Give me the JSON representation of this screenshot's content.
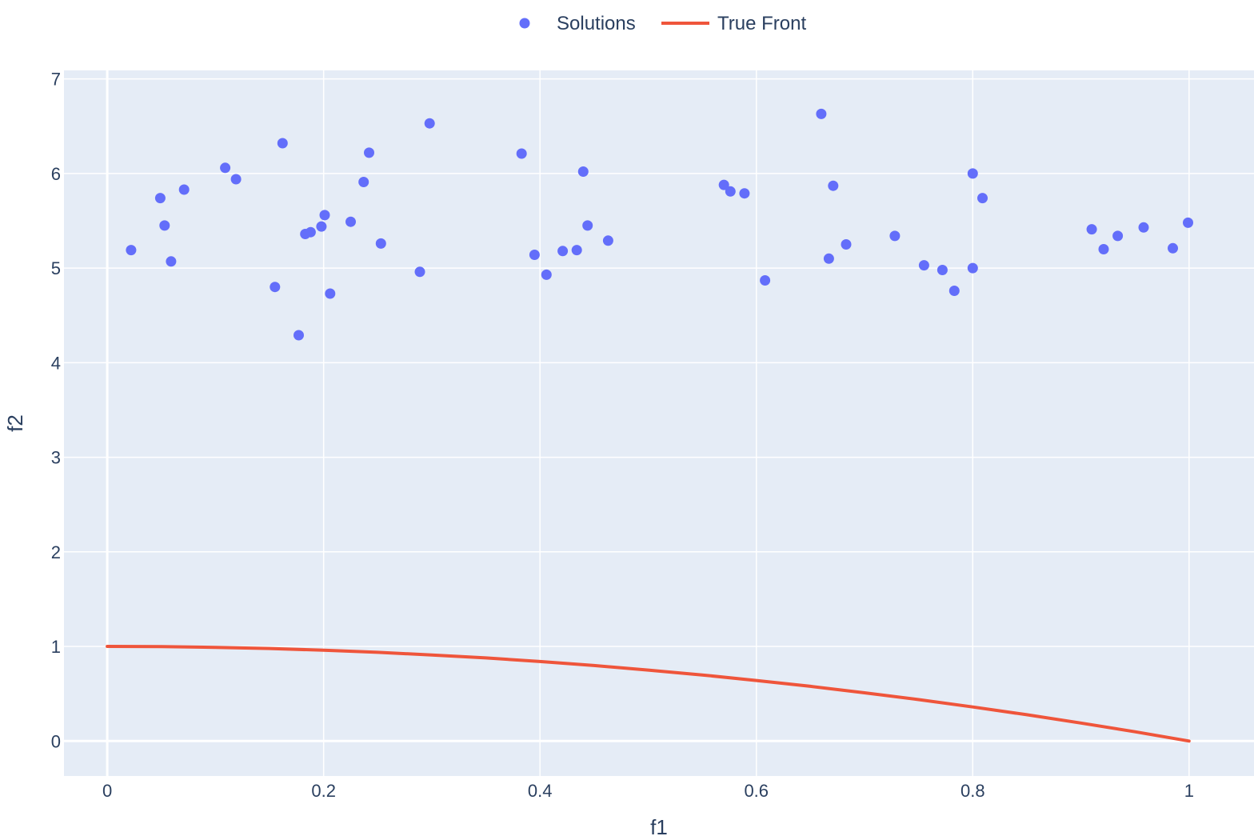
{
  "chart_data": {
    "type": "scatter",
    "title": "",
    "xlabel": "f1",
    "ylabel": "f2",
    "xlim": [
      -0.04,
      1.06
    ],
    "ylim": [
      -0.37,
      7.09
    ],
    "x_ticks": [
      0,
      0.2,
      0.4,
      0.6,
      0.8,
      1
    ],
    "x_tick_labels": [
      "0",
      "0.2",
      "0.4",
      "0.6",
      "0.8",
      "1"
    ],
    "y_ticks": [
      0,
      1,
      2,
      3,
      4,
      5,
      6,
      7
    ],
    "y_tick_labels": [
      "0",
      "1",
      "2",
      "3",
      "4",
      "5",
      "6",
      "7"
    ],
    "grid": true,
    "background_color": "#e5ecf6",
    "legend_position": "top-center",
    "series": [
      {
        "name": "Solutions",
        "mode": "markers",
        "color": "#636efa",
        "points": [
          [
            0.022,
            5.19
          ],
          [
            0.049,
            5.74
          ],
          [
            0.053,
            5.45
          ],
          [
            0.059,
            5.07
          ],
          [
            0.071,
            5.83
          ],
          [
            0.109,
            6.06
          ],
          [
            0.119,
            5.94
          ],
          [
            0.155,
            4.8
          ],
          [
            0.162,
            6.32
          ],
          [
            0.177,
            4.29
          ],
          [
            0.183,
            5.36
          ],
          [
            0.188,
            5.38
          ],
          [
            0.198,
            5.44
          ],
          [
            0.201,
            5.56
          ],
          [
            0.206,
            4.73
          ],
          [
            0.225,
            5.49
          ],
          [
            0.237,
            5.91
          ],
          [
            0.242,
            6.22
          ],
          [
            0.253,
            5.26
          ],
          [
            0.289,
            4.96
          ],
          [
            0.298,
            6.53
          ],
          [
            0.383,
            6.21
          ],
          [
            0.395,
            5.14
          ],
          [
            0.406,
            4.93
          ],
          [
            0.421,
            5.18
          ],
          [
            0.434,
            5.19
          ],
          [
            0.44,
            6.02
          ],
          [
            0.444,
            5.45
          ],
          [
            0.463,
            5.29
          ],
          [
            0.57,
            5.88
          ],
          [
            0.576,
            5.81
          ],
          [
            0.589,
            5.79
          ],
          [
            0.608,
            4.87
          ],
          [
            0.66,
            6.63
          ],
          [
            0.667,
            5.1
          ],
          [
            0.671,
            5.87
          ],
          [
            0.683,
            5.25
          ],
          [
            0.728,
            5.34
          ],
          [
            0.755,
            5.03
          ],
          [
            0.772,
            4.98
          ],
          [
            0.783,
            4.76
          ],
          [
            0.8,
            5.0
          ],
          [
            0.8,
            6.0
          ],
          [
            0.809,
            5.74
          ],
          [
            0.91,
            5.41
          ],
          [
            0.921,
            5.2
          ],
          [
            0.934,
            5.34
          ],
          [
            0.958,
            5.43
          ],
          [
            0.985,
            5.21
          ],
          [
            0.999,
            5.48
          ]
        ]
      },
      {
        "name": "True Front",
        "mode": "lines",
        "color": "#ef553b",
        "points": [
          [
            0.0,
            1.0
          ],
          [
            0.05,
            0.998
          ],
          [
            0.1,
            0.99
          ],
          [
            0.15,
            0.978
          ],
          [
            0.2,
            0.96
          ],
          [
            0.25,
            0.938
          ],
          [
            0.3,
            0.91
          ],
          [
            0.35,
            0.878
          ],
          [
            0.4,
            0.84
          ],
          [
            0.45,
            0.798
          ],
          [
            0.5,
            0.75
          ],
          [
            0.55,
            0.698
          ],
          [
            0.6,
            0.64
          ],
          [
            0.65,
            0.578
          ],
          [
            0.7,
            0.51
          ],
          [
            0.75,
            0.438
          ],
          [
            0.8,
            0.36
          ],
          [
            0.85,
            0.278
          ],
          [
            0.9,
            0.19
          ],
          [
            0.95,
            0.098
          ],
          [
            1.0,
            0.0
          ]
        ]
      }
    ]
  }
}
